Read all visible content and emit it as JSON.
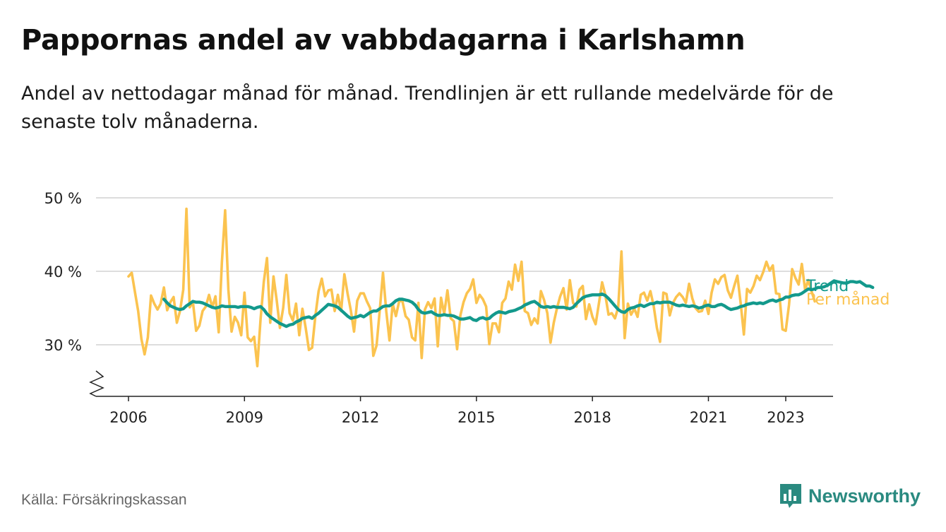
{
  "title": "Pappornas andel av vabbdagarna i Karlshamn",
  "subtitle": "Andel av nettodagar månad för månad. Trendlinjen är ett rullande medelvärde för de senaste tolv månaderna.",
  "source": "Källa: Försäkringskassan",
  "brand": {
    "name": "Newsworthy",
    "logo_icon": "bar-chart-speech-bubble-icon"
  },
  "colors": {
    "monthly": "#fbc34f",
    "trend": "#13998c",
    "grid": "#dddddd",
    "axis": "#222222"
  },
  "chart_data": {
    "type": "line",
    "title": "Pappornas andel av vabbdagarna i Karlshamn",
    "ylabel": "",
    "xlabel": "",
    "ylim": [
      23,
      50
    ],
    "xlim": [
      2005.3,
      2024.2
    ],
    "y_ticks": [
      30,
      40,
      50
    ],
    "y_tick_labels": [
      "30 %",
      "40 %",
      "50 %"
    ],
    "x_ticks": [
      2006,
      2009,
      2012,
      2015,
      2018,
      2021,
      2023
    ],
    "x_tick_labels": [
      "2006",
      "2009",
      "2012",
      "2015",
      "2018",
      "2021",
      "2023"
    ],
    "axis_break": true,
    "x_start": 2006,
    "x_step_months": 1,
    "series": [
      {
        "name": "Per månad",
        "color": "#fbc34f",
        "values": [
          39.3,
          39.8,
          37.2,
          34.6,
          30.8,
          28.7,
          31.0,
          36.7,
          35.6,
          34.8,
          35.6,
          37.8,
          34.7,
          35.8,
          36.5,
          33.0,
          34.6,
          37.5,
          48.5,
          35.1,
          35.8,
          31.9,
          32.6,
          34.6,
          35.2,
          36.8,
          35.1,
          36.6,
          31.7,
          41.2,
          48.3,
          37.5,
          31.8,
          33.8,
          33.0,
          31.3,
          37.1,
          31.0,
          30.5,
          31.1,
          27.1,
          33.5,
          38.6,
          41.8,
          33.0,
          39.3,
          36.1,
          32.3,
          35.0,
          39.5,
          34.3,
          33.3,
          35.6,
          31.3,
          34.9,
          32.3,
          29.3,
          29.6,
          33.9,
          37.3,
          39.0,
          36.6,
          37.4,
          37.5,
          34.6,
          36.8,
          34.6,
          39.6,
          37.0,
          34.7,
          31.8,
          36.0,
          37.0,
          37.0,
          35.9,
          35.0,
          28.5,
          29.9,
          34.8,
          39.8,
          34.6,
          30.6,
          35.6,
          33.9,
          35.9,
          36.0,
          33.9,
          33.4,
          31.0,
          30.6,
          35.7,
          28.2,
          34.8,
          35.8,
          35.0,
          36.3,
          29.8,
          36.4,
          34.2,
          37.4,
          33.6,
          33.2,
          29.4,
          34.0,
          35.8,
          37.0,
          37.6,
          38.9,
          35.7,
          36.8,
          36.2,
          35.2,
          30.1,
          32.9,
          32.9,
          31.7,
          35.7,
          36.3,
          38.6,
          37.5,
          40.9,
          38.7,
          41.3,
          34.6,
          34.3,
          32.7,
          33.6,
          32.9,
          37.3,
          36.1,
          34.3,
          30.3,
          33.0,
          35.0,
          36.6,
          37.7,
          34.8,
          38.8,
          35.7,
          35.2,
          37.5,
          38.0,
          33.5,
          35.5,
          33.8,
          32.8,
          35.6,
          38.5,
          36.8,
          34.1,
          34.3,
          33.6,
          35.1,
          42.7,
          30.9,
          35.6,
          34.1,
          34.9,
          33.8,
          36.8,
          37.1,
          36.0,
          37.3,
          35.3,
          32.3,
          30.4,
          37.1,
          36.9,
          34.0,
          35.7,
          36.5,
          37.0,
          36.5,
          35.7,
          38.3,
          36.3,
          35.0,
          34.5,
          34.6,
          36.0,
          34.2,
          37.1,
          38.9,
          38.3,
          39.2,
          39.5,
          37.4,
          36.4,
          38.0,
          39.4,
          35.7,
          31.4,
          37.6,
          37.1,
          38.0,
          39.4,
          38.8,
          39.9,
          41.3,
          40.1,
          40.8,
          37.0,
          36.9,
          32.1,
          31.9,
          35.4,
          40.3,
          39.1,
          38.2,
          41.0,
          37.5,
          38.8,
          37.3,
          35.9
        ]
      },
      {
        "name": "Trend",
        "color": "#13998c",
        "start_offset_months": 11,
        "values": [
          36.2,
          35.7,
          35.3,
          35.1,
          34.9,
          34.8,
          34.9,
          35.3,
          35.6,
          35.9,
          35.8,
          35.8,
          35.7,
          35.5,
          35.3,
          35.1,
          35.0,
          35.1,
          35.3,
          35.2,
          35.2,
          35.2,
          35.2,
          35.1,
          35.2,
          35.2,
          35.2,
          35.1,
          34.9,
          35.1,
          35.2,
          34.8,
          34.2,
          33.8,
          33.5,
          33.2,
          32.9,
          32.7,
          32.5,
          32.7,
          32.8,
          33.1,
          33.3,
          33.6,
          33.7,
          33.8,
          33.6,
          34.0,
          34.3,
          34.7,
          35.1,
          35.5,
          35.4,
          35.3,
          35.1,
          34.7,
          34.3,
          33.9,
          33.6,
          33.7,
          33.8,
          34.0,
          33.8,
          34.1,
          34.4,
          34.6,
          34.6,
          34.9,
          35.2,
          35.3,
          35.3,
          35.6,
          36.0,
          36.2,
          36.2,
          36.1,
          36.0,
          35.8,
          35.4,
          34.8,
          34.4,
          34.3,
          34.4,
          34.5,
          34.2,
          34.0,
          34.0,
          34.1,
          34.0,
          34.0,
          33.9,
          33.7,
          33.5,
          33.5,
          33.6,
          33.7,
          33.4,
          33.3,
          33.6,
          33.7,
          33.5,
          33.6,
          34.0,
          34.3,
          34.5,
          34.4,
          34.3,
          34.5,
          34.6,
          34.7,
          34.9,
          35.1,
          35.4,
          35.6,
          35.8,
          35.9,
          35.6,
          35.2,
          35.1,
          35.2,
          35.1,
          35.2,
          35.1,
          35.1,
          35.1,
          35.0,
          34.9,
          35.1,
          35.6,
          36.0,
          36.4,
          36.6,
          36.7,
          36.8,
          36.8,
          36.8,
          36.9,
          36.7,
          36.3,
          35.8,
          35.3,
          34.8,
          34.5,
          34.4,
          34.8,
          35.0,
          35.1,
          35.3,
          35.4,
          35.2,
          35.4,
          35.6,
          35.6,
          35.8,
          35.7,
          35.8,
          35.8,
          35.8,
          35.6,
          35.4,
          35.3,
          35.4,
          35.3,
          35.2,
          35.3,
          35.2,
          35.0,
          35.1,
          35.3,
          35.4,
          35.2,
          35.2,
          35.4,
          35.5,
          35.3,
          35.0,
          34.8,
          34.9,
          35.0,
          35.2,
          35.3,
          35.5,
          35.6,
          35.7,
          35.6,
          35.7,
          35.6,
          35.8,
          36.0,
          36.1,
          35.9,
          36.1,
          36.2,
          36.5,
          36.5,
          36.7,
          36.8,
          36.8,
          37.0,
          37.3,
          37.6,
          37.5,
          37.6,
          37.8,
          37.8,
          37.9,
          38.1,
          38.4,
          38.7,
          38.6,
          38.5,
          38.4,
          38.4,
          38.6,
          38.6,
          38.5,
          38.6,
          38.3,
          38.0,
          38.0,
          37.8
        ]
      }
    ],
    "legend": [
      {
        "label": "Trend",
        "color": "#13998c"
      },
      {
        "label": "Per månad",
        "color": "#fbc34f"
      }
    ],
    "legend_placement": "right of line ends"
  }
}
